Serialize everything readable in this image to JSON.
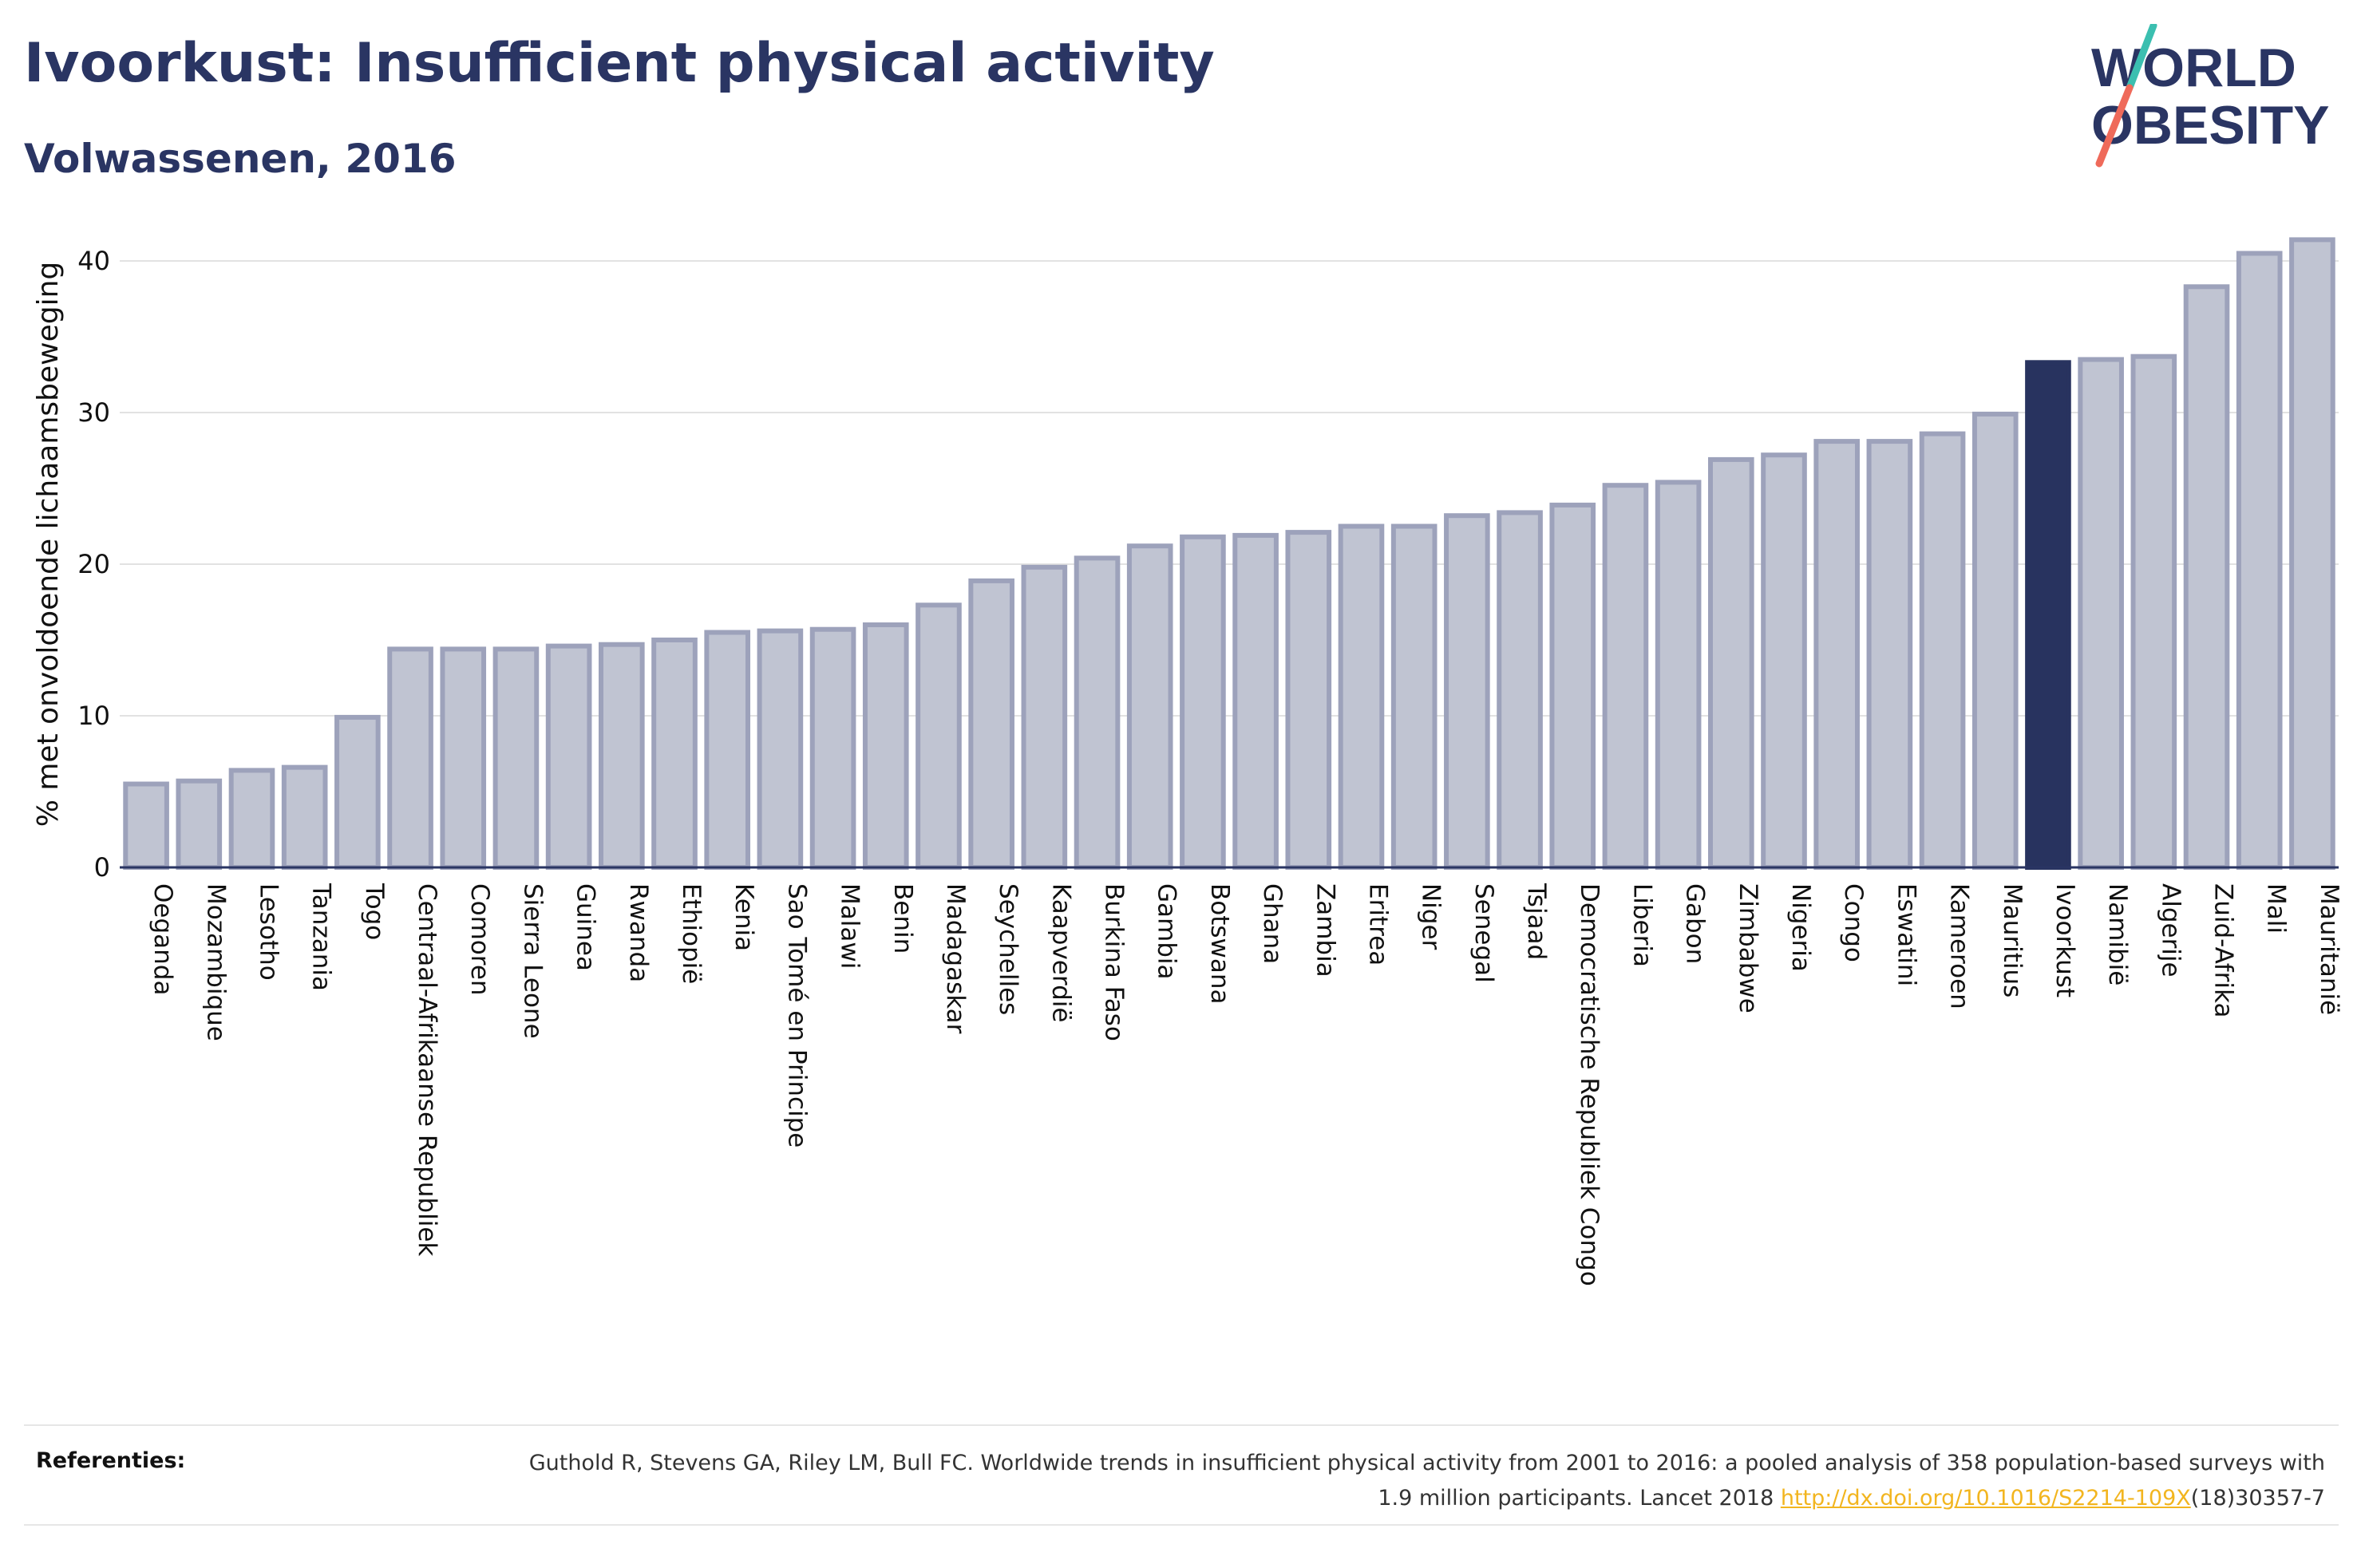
{
  "header": {
    "title": "Ivoorkust: Insufficient physical activity",
    "subtitle": "Volwassenen, 2016"
  },
  "logo": {
    "line1": "WORLD",
    "line2": "OBESITY",
    "colors": {
      "text": "#2a3563",
      "slash_teal": "#3bbfb0",
      "slash_coral": "#ef6a5a"
    }
  },
  "colors": {
    "bar_fill": "#c0c4d2",
    "bar_stroke": "#9da2bb",
    "highlight_fill": "#28335f",
    "grid": "#e2e2e2",
    "axis": "#2a3563"
  },
  "chart_data": {
    "type": "bar",
    "ylabel": "% met onvoldoende lichaamsbeweging",
    "ylim": [
      0,
      43
    ],
    "yticks": [
      0,
      10,
      20,
      30,
      40
    ],
    "grid": true,
    "highlight": "Ivoorkust",
    "categories": [
      "Oeganda",
      "Mozambique",
      "Lesotho",
      "Tanzania",
      "Togo",
      "Centraal-Afrikaanse Republiek",
      "Comoren",
      "Sierra Leone",
      "Guinea",
      "Rwanda",
      "Ethiopië",
      "Kenia",
      "Sao Tomé en Principe",
      "Malawi",
      "Benin",
      "Madagaskar",
      "Seychelles",
      "Kaapverdië",
      "Burkina Faso",
      "Gambia",
      "Botswana",
      "Ghana",
      "Zambia",
      "Eritrea",
      "Niger",
      "Senegal",
      "Tsjaad",
      "Democratische Republiek Congo",
      "Liberia",
      "Gabon",
      "Zimbabwe",
      "Nigeria",
      "Congo",
      "Eswatini",
      "Kameroen",
      "Mauritius",
      "Ivoorkust",
      "Namibië",
      "Algerije",
      "Zuid-Afrika",
      "Mali",
      "Mauritanië"
    ],
    "values": [
      5.5,
      5.7,
      6.4,
      6.6,
      9.9,
      14.4,
      14.4,
      14.4,
      14.6,
      14.7,
      15.0,
      15.5,
      15.6,
      15.7,
      16.0,
      17.3,
      18.9,
      19.8,
      20.4,
      21.2,
      21.8,
      21.9,
      22.1,
      22.5,
      22.5,
      23.2,
      23.4,
      23.9,
      25.2,
      25.4,
      26.9,
      27.2,
      28.1,
      28.1,
      28.6,
      29.9,
      33.3,
      33.5,
      33.7,
      38.3,
      40.5,
      41.4
    ]
  },
  "references": {
    "label": "Referenties:",
    "text_before": "Guthold R, Stevens GA, Riley LM, Bull FC. Worldwide trends in insufficient physical activity from 2001 to 2016: a pooled analysis of 358 population-based surveys with 1.9 million participants. Lancet 2018 ",
    "link_text": "http://dx.doi.org/10.1016/S2214-109X",
    "text_after": "(18)30357-7"
  }
}
